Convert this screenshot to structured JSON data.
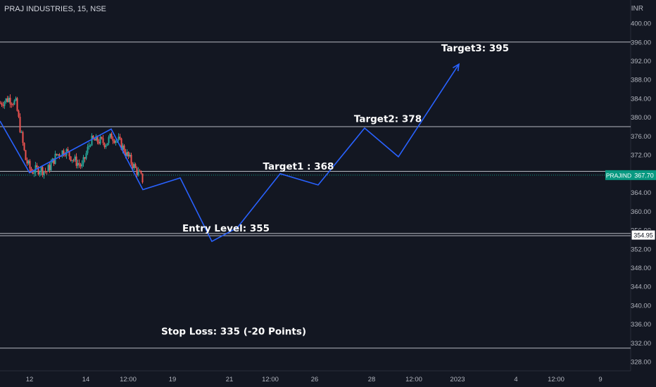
{
  "header": {
    "symbol_line": "PRAJ INDUSTRIES, 15, NSE",
    "currency": "INR"
  },
  "colors": {
    "background": "#131722",
    "grid_text": "#b2b5be",
    "level_line": "#d1d4dc",
    "projection": "#2962ff",
    "candle_up": "#26a69a",
    "candle_down": "#ef5350",
    "price_tag": "#089981"
  },
  "chart_data": {
    "type": "candlestick",
    "title": "PRAJ INDUSTRIES, 15, NSE",
    "y_axis": {
      "unit": "INR",
      "ticks": [
        "400.00",
        "396.00",
        "392.00",
        "388.00",
        "384.00",
        "380.00",
        "376.00",
        "372.00",
        "368.00",
        "364.00",
        "360.00",
        "356.00",
        "352.00",
        "348.00",
        "344.00",
        "340.00",
        "336.00",
        "332.00",
        "328.00"
      ],
      "range": [
        326,
        401.5
      ]
    },
    "x_axis": {
      "ticks": [
        "12",
        "14",
        "12:00",
        "19",
        "21",
        "12:00",
        "26",
        "28",
        "12:00",
        "2023",
        "4",
        "12:00",
        "9"
      ]
    },
    "price_tags": [
      {
        "label": "PRAJIND",
        "value": "367.70",
        "price": 367.7,
        "style": "filled"
      },
      {
        "label": "",
        "value": "354.95",
        "price": 354.95,
        "style": "outlined"
      }
    ],
    "horizontal_levels": [
      396,
      378,
      368.5,
      355.3,
      354.8,
      330.9
    ],
    "annotations": [
      {
        "text": "Target3: 395",
        "price": 394
      },
      {
        "text": "Target2: 378",
        "price": 379
      },
      {
        "text": "Target1 : 368",
        "price": 368.9
      },
      {
        "text": "Entry Level: 355",
        "price": 355.7
      },
      {
        "text": "Stop Loss: 335 (-20 Points)",
        "price": 333.8
      }
    ],
    "projection_path": [
      {
        "bar": 0,
        "price": 379.2
      },
      {
        "bar": 42,
        "price": 368.2
      },
      {
        "bar": 158,
        "price": 377.5
      },
      {
        "bar": 203,
        "price": 364.6
      },
      {
        "bar": 256,
        "price": 367.1
      },
      {
        "bar": 301,
        "price": 353.6
      },
      {
        "bar": 337,
        "price": 356.5
      },
      {
        "bar": 398,
        "price": 368.0
      },
      {
        "bar": 452,
        "price": 365.6
      },
      {
        "bar": 518,
        "price": 377.7
      },
      {
        "bar": 566,
        "price": 371.6
      },
      {
        "bar": 652,
        "price": 391.3
      }
    ],
    "candle_series": {
      "bar_start": 0,
      "bar_end": 203,
      "anchors": [
        {
          "bar": 0,
          "price": 383
        },
        {
          "bar": 12,
          "price": 384
        },
        {
          "bar": 22,
          "price": 383
        },
        {
          "bar": 30,
          "price": 376
        },
        {
          "bar": 36,
          "price": 371
        },
        {
          "bar": 44,
          "price": 368.5
        },
        {
          "bar": 56,
          "price": 369
        },
        {
          "bar": 66,
          "price": 368.5
        },
        {
          "bar": 80,
          "price": 372
        },
        {
          "bar": 92,
          "price": 373
        },
        {
          "bar": 104,
          "price": 371
        },
        {
          "bar": 116,
          "price": 369.5
        },
        {
          "bar": 128,
          "price": 375
        },
        {
          "bar": 140,
          "price": 375
        },
        {
          "bar": 150,
          "price": 374.5
        },
        {
          "bar": 158,
          "price": 376
        },
        {
          "bar": 168,
          "price": 375
        },
        {
          "bar": 180,
          "price": 372
        },
        {
          "bar": 192,
          "price": 369
        },
        {
          "bar": 203,
          "price": 366.5
        }
      ]
    },
    "grid": false,
    "legend": "none"
  }
}
